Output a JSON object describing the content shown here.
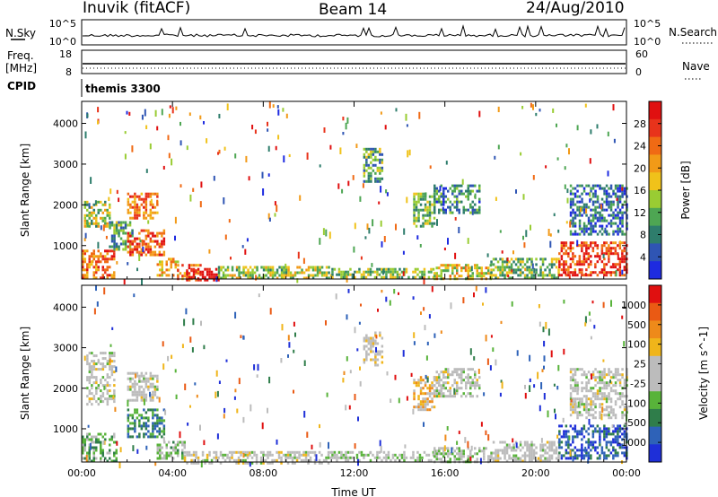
{
  "header": {
    "site": "Inuvik (fitACF)",
    "beam": "Beam 14",
    "date": "24/Aug/2010"
  },
  "noise_panel": {
    "left_label": "N.Sky",
    "left_ticks": [
      "10^5",
      "10^0"
    ],
    "right_ticks": [
      "10^5",
      "10^0"
    ],
    "right_label": "N.Search"
  },
  "freq_panel": {
    "left_label_1": "Freq.",
    "left_label_2": "[MHz]",
    "left_ticks": [
      "18",
      "8"
    ],
    "right_ticks": [
      "60",
      "0"
    ],
    "right_label": "Nave"
  },
  "cpid_panel": {
    "label": "CPID",
    "text": "themis 3300"
  },
  "colors": {
    "power_scale": [
      "#1e2be0",
      "#2f55b4",
      "#2e7d6c",
      "#4ea653",
      "#99cc33",
      "#f0c21a",
      "#f29a17",
      "#f06a14",
      "#e8331b",
      "#e01010"
    ],
    "velocity_scale": [
      "#1e2fd8",
      "#2e62b8",
      "#2f7d4a",
      "#58b33a",
      "#bcbcbc",
      "#bcbcbc",
      "#f0b51a",
      "#ee8a1a",
      "#ea5a14",
      "#e01010"
    ]
  },
  "chart_data": [
    {
      "type": "heatmap",
      "name": "power-panel",
      "xlabel": "",
      "ylabel": "Slant Range [km]",
      "x_ticks": [
        "00:00",
        "04:00",
        "08:00",
        "12:00",
        "16:00",
        "20:00",
        "00:00"
      ],
      "y_ticks": [
        "1000",
        "2000",
        "3000",
        "4000"
      ],
      "xlim_hours": [
        0,
        24
      ],
      "ylim_km": [
        180,
        4540
      ],
      "colorbar": {
        "label": "Power [dB]",
        "ticks": [
          "28",
          "24",
          "20",
          "16",
          "12",
          "8",
          "4"
        ],
        "range": [
          0,
          30
        ]
      },
      "regions": [
        {
          "t": [
            0.0,
            1.4
          ],
          "r": [
            180,
            900
          ],
          "v": 22
        },
        {
          "t": [
            0.1,
            1.2
          ],
          "r": [
            1500,
            2100
          ],
          "v": 14
        },
        {
          "t": [
            1.2,
            2.2
          ],
          "r": [
            900,
            1600
          ],
          "v": 10
        },
        {
          "t": [
            2.0,
            3.6
          ],
          "r": [
            800,
            1400
          ],
          "v": 24
        },
        {
          "t": [
            2.0,
            3.3
          ],
          "r": [
            1700,
            2300
          ],
          "v": 22
        },
        {
          "t": [
            3.3,
            4.2
          ],
          "r": [
            250,
            700
          ],
          "v": 18
        },
        {
          "t": [
            4.2,
            5.2
          ],
          "r": [
            200,
            550
          ],
          "v": 22
        },
        {
          "t": [
            4.6,
            6.0
          ],
          "r": [
            180,
            450
          ],
          "v": 28
        },
        {
          "t": [
            6.0,
            11.0
          ],
          "r": [
            200,
            500
          ],
          "v": 14
        },
        {
          "t": [
            11.0,
            15.5
          ],
          "r": [
            200,
            450
          ],
          "v": 12
        },
        {
          "t": [
            12.4,
            13.2
          ],
          "r": [
            2600,
            3400
          ],
          "v": 10
        },
        {
          "t": [
            14.6,
            15.5
          ],
          "r": [
            1500,
            2300
          ],
          "v": 12
        },
        {
          "t": [
            15.5,
            17.5
          ],
          "r": [
            1800,
            2500
          ],
          "v": 8
        },
        {
          "t": [
            15.5,
            18.0
          ],
          "r": [
            200,
            550
          ],
          "v": 16
        },
        {
          "t": [
            18.0,
            21.0
          ],
          "r": [
            200,
            700
          ],
          "v": 12
        },
        {
          "t": [
            21.0,
            24.0
          ],
          "r": [
            300,
            1100
          ],
          "v": 26
        },
        {
          "t": [
            21.5,
            24.0
          ],
          "r": [
            1300,
            2500
          ],
          "v": 6
        }
      ]
    },
    {
      "type": "heatmap",
      "name": "velocity-panel",
      "xlabel": "Time UT",
      "ylabel": "Slant Range [km]",
      "x_ticks": [
        "00:00",
        "04:00",
        "08:00",
        "12:00",
        "16:00",
        "20:00",
        "00:00"
      ],
      "y_ticks": [
        "1000",
        "2000",
        "3000",
        "4000"
      ],
      "xlim_hours": [
        0,
        24
      ],
      "ylim_km": [
        180,
        4540
      ],
      "colorbar": {
        "label": "Velocity [m s^-1]",
        "ticks": [
          "1000",
          "500",
          "100",
          "25",
          "-25",
          "-100",
          "-500",
          "-1000"
        ],
        "range": [
          -1000,
          1000
        ]
      },
      "regions": [
        {
          "t": [
            0.0,
            1.5
          ],
          "r": [
            180,
            900
          ],
          "v": -300
        },
        {
          "t": [
            0.2,
            1.4
          ],
          "r": [
            1600,
            2900
          ],
          "v": 0
        },
        {
          "t": [
            2.0,
            3.6
          ],
          "r": [
            800,
            1500
          ],
          "v": -500
        },
        {
          "t": [
            2.0,
            3.3
          ],
          "r": [
            1700,
            2400
          ],
          "v": 0
        },
        {
          "t": [
            3.3,
            4.5
          ],
          "r": [
            250,
            700
          ],
          "v": -200
        },
        {
          "t": [
            4.5,
            11.0
          ],
          "r": [
            180,
            450
          ],
          "v": 0
        },
        {
          "t": [
            11.0,
            15.5
          ],
          "r": [
            200,
            450
          ],
          "v": -100
        },
        {
          "t": [
            12.4,
            13.2
          ],
          "r": [
            2600,
            3400
          ],
          "v": 60
        },
        {
          "t": [
            14.6,
            15.5
          ],
          "r": [
            1500,
            2300
          ],
          "v": 300
        },
        {
          "t": [
            15.5,
            17.5
          ],
          "r": [
            1800,
            2500
          ],
          "v": 0
        },
        {
          "t": [
            15.5,
            18.0
          ],
          "r": [
            200,
            550
          ],
          "v": -150
        },
        {
          "t": [
            18.0,
            21.0
          ],
          "r": [
            200,
            700
          ],
          "v": 0
        },
        {
          "t": [
            21.0,
            24.0
          ],
          "r": [
            300,
            1100
          ],
          "v": -700
        },
        {
          "t": [
            21.5,
            24.0
          ],
          "r": [
            1300,
            2500
          ],
          "v": 0
        }
      ]
    }
  ]
}
